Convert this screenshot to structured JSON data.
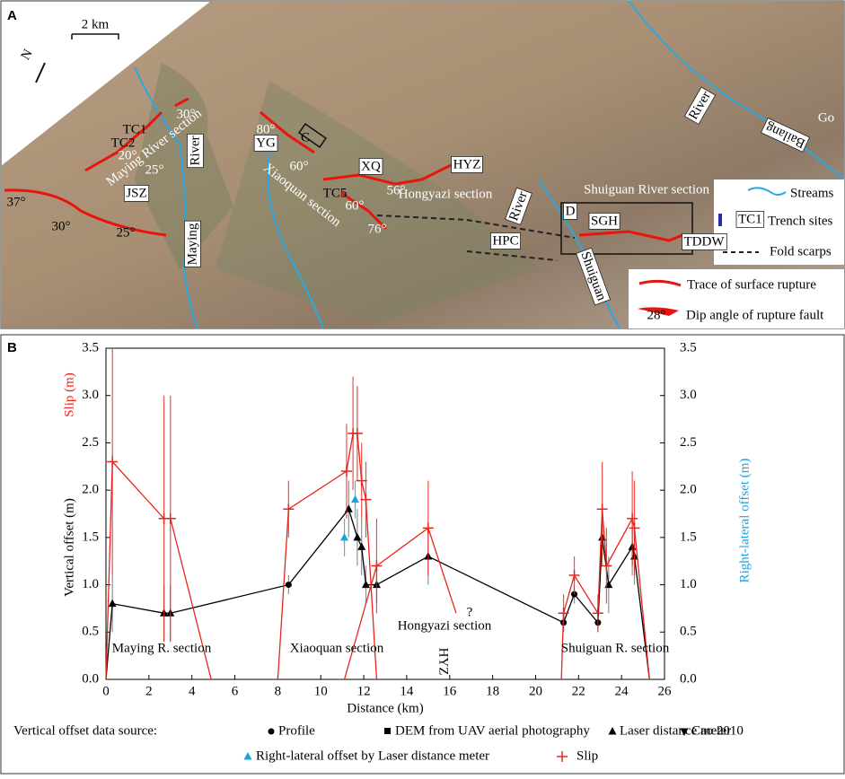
{
  "panel_a": {
    "label": "A",
    "scale": "2 km",
    "north": "N",
    "map_labels": [
      "TC1",
      "TC2",
      "30°",
      "25°",
      "20°",
      "Maying River section",
      "JSZ",
      "River",
      "Maying",
      "37°",
      "30°",
      "25°",
      "80°",
      "YG",
      "C",
      "60°",
      "Xiaoquan section",
      "XQ",
      "TC5",
      "56°",
      "60°",
      "76°",
      "Hongyazi section",
      "HYZ",
      "HPC",
      "River",
      "D",
      "SGH",
      "TDDW",
      "Shuiguan River section",
      "Shuiguan",
      "River",
      "Bailang",
      "Go"
    ],
    "legend": {
      "streams": "Streams",
      "trench_symbol": "TC1",
      "trench": "Trench sites",
      "fold": "Fold scarps",
      "trace": "Trace of surface rupture",
      "dip_symbol": "28°",
      "dip": "Dip angle of rupture fault"
    }
  },
  "chart_data": {
    "type": "line",
    "panel_label": "B",
    "xlabel": "Distance (km)",
    "ylabel": "Vertical offset (m)",
    "ylabel_slip": "Slip (m)",
    "y2label": "Right-lateral offset (m)",
    "xlim": [
      0,
      26
    ],
    "xticks": [
      0,
      2,
      4,
      6,
      8,
      10,
      12,
      14,
      16,
      18,
      20,
      22,
      24,
      26
    ],
    "ylim": [
      0,
      3.5
    ],
    "yticks": [
      {
        "value": 0,
        "label": "0.0"
      },
      0.5,
      {
        "value": 1,
        "label": "1.0"
      },
      1.5,
      {
        "value": 2,
        "label": "2.0"
      },
      2.5,
      {
        "value": 3,
        "label": "3.0"
      },
      3.5
    ],
    "y2lim": [
      0,
      3.5
    ],
    "y2ticks": [
      {
        "value": 0,
        "label": "0.0"
      },
      0.5,
      {
        "value": 1,
        "label": "1.0"
      },
      1.5,
      {
        "value": 2,
        "label": "2.0"
      },
      2.5,
      {
        "value": 3,
        "label": "3.0"
      },
      3.5
    ],
    "series": [
      {
        "color": "#000000",
        "x": [
          0,
          0.3,
          2.7,
          3.0,
          8.5,
          11.3,
          11.7,
          11.9,
          12.1,
          12.6,
          15.0,
          21.3,
          21.8,
          22.9,
          23.1,
          23.4,
          24.5,
          24.6,
          25.3
        ],
        "values": [
          0,
          0.8,
          0.7,
          0.7,
          1.0,
          1.8,
          1.5,
          1.4,
          1.0,
          1.0,
          1.3,
          0.6,
          0.9,
          0.6,
          1.5,
          1.0,
          1.4,
          1.3,
          0
        ],
        "errors": [
          null,
          0.3,
          0.3,
          0.3,
          0.1,
          0.3,
          0.3,
          0.3,
          0.2,
          0.2,
          0.3,
          0.1,
          0.1,
          0.1,
          0.3,
          0.3,
          0.3,
          0.3,
          null
        ],
        "markers": [
          null,
          "triangle",
          "triangle",
          "triangle",
          "circle",
          "triangle",
          "triangle",
          "triangle",
          "triangle",
          "triangle",
          "triangle",
          "circle",
          "circle",
          "circle",
          "triangle",
          "triangle",
          "triangle",
          "triangle",
          null
        ]
      },
      {
        "name": "Slip",
        "color": "#e8241c",
        "x": [
          0,
          0.3,
          2.7,
          3.0,
          4.9,
          null,
          8.0,
          8.5,
          11.2,
          11.5,
          11.7,
          11.9,
          12.1,
          12.6,
          null,
          11.1,
          12.6,
          15.0,
          16.3,
          null,
          21.2,
          21.3,
          21.8,
          22.9,
          23.1,
          23.3,
          24.5,
          24.6,
          25.3
        ],
        "values": [
          0,
          2.3,
          1.7,
          1.7,
          0,
          null,
          0,
          1.8,
          2.2,
          2.6,
          2.6,
          2.1,
          1.9,
          0,
          null,
          0,
          1.2,
          1.6,
          0.7,
          null,
          0,
          0.7,
          1.1,
          0.7,
          1.8,
          1.2,
          1.7,
          1.6,
          0
        ],
        "errors": [
          null,
          1.2,
          1.3,
          1.3,
          null,
          null,
          null,
          0.3,
          0.5,
          0.6,
          0.5,
          0.4,
          0.4,
          null,
          null,
          null,
          0.5,
          0.5,
          null,
          null,
          null,
          0.2,
          0.2,
          0.2,
          0.5,
          0.4,
          0.5,
          0.5,
          null
        ],
        "markers": [
          null,
          "plus",
          "plus",
          "plus",
          null,
          null,
          null,
          "plus",
          "plus",
          "plus",
          "plus",
          "plus",
          "plus",
          null,
          null,
          null,
          "plus",
          "plus",
          null,
          null,
          null,
          "plus",
          "plus",
          "plus",
          "plus",
          "plus",
          "plus",
          "plus",
          null
        ]
      },
      {
        "name": "Right-lateral offset by Laser distance meter",
        "color": "#1aa3e0",
        "axis": "y2",
        "x": [
          11.1,
          11.6
        ],
        "values": [
          1.5,
          1.9
        ],
        "errors": [
          0.2,
          0.2
        ]
      }
    ],
    "annotations": [
      "Maying R. section",
      "Xiaoquan section",
      "Hongyazi section",
      "?",
      "HYZ",
      "Shuiguan R. section"
    ],
    "legend_prefix": "Vertical offset data source:",
    "marker_legend": [
      "Profile",
      "DEM from UAV aerial photography",
      "Laser distance meter",
      "Cao 2010"
    ]
  }
}
